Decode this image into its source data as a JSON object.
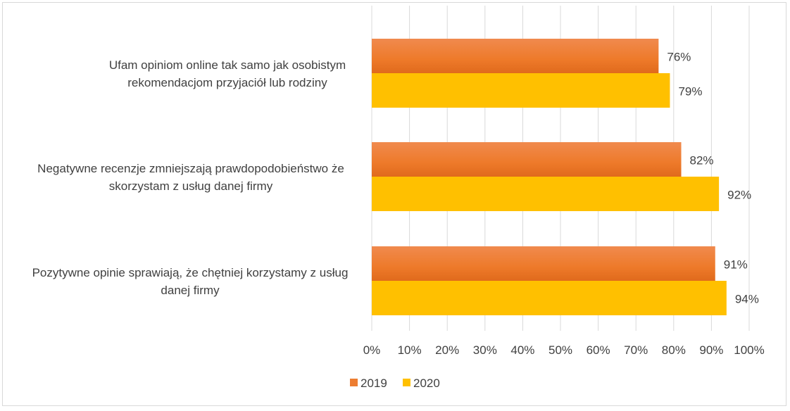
{
  "chart_data": {
    "type": "bar",
    "orientation": "horizontal",
    "title": "",
    "categories": [
      [
        "Ufam opiniom online tak samo jak osobistym",
        "rekomendacjom przyjaciół lub rodziny"
      ],
      [
        "Negatywne recenzje zmniejszają prawdopodobieństwo że",
        "skorzystam z usług danej firmy"
      ],
      [
        "Pozytywne opinie sprawiają, że chętniej korzystamy z usług",
        "danej firmy"
      ]
    ],
    "series": [
      {
        "name": "2019",
        "color": "#ed7d31",
        "values": [
          76,
          82,
          91
        ],
        "labels": [
          "76%",
          "82%",
          "91%"
        ]
      },
      {
        "name": "2020",
        "color": "#ffc000",
        "values": [
          79,
          92,
          94
        ],
        "labels": [
          "79%",
          "92%",
          "94%"
        ]
      }
    ],
    "xlim": [
      0,
      100
    ],
    "xticks": [
      "0%",
      "10%",
      "20%",
      "30%",
      "40%",
      "50%",
      "60%",
      "70%",
      "80%",
      "90%",
      "100%"
    ],
    "grid": true,
    "legend_position": "bottom-left"
  }
}
